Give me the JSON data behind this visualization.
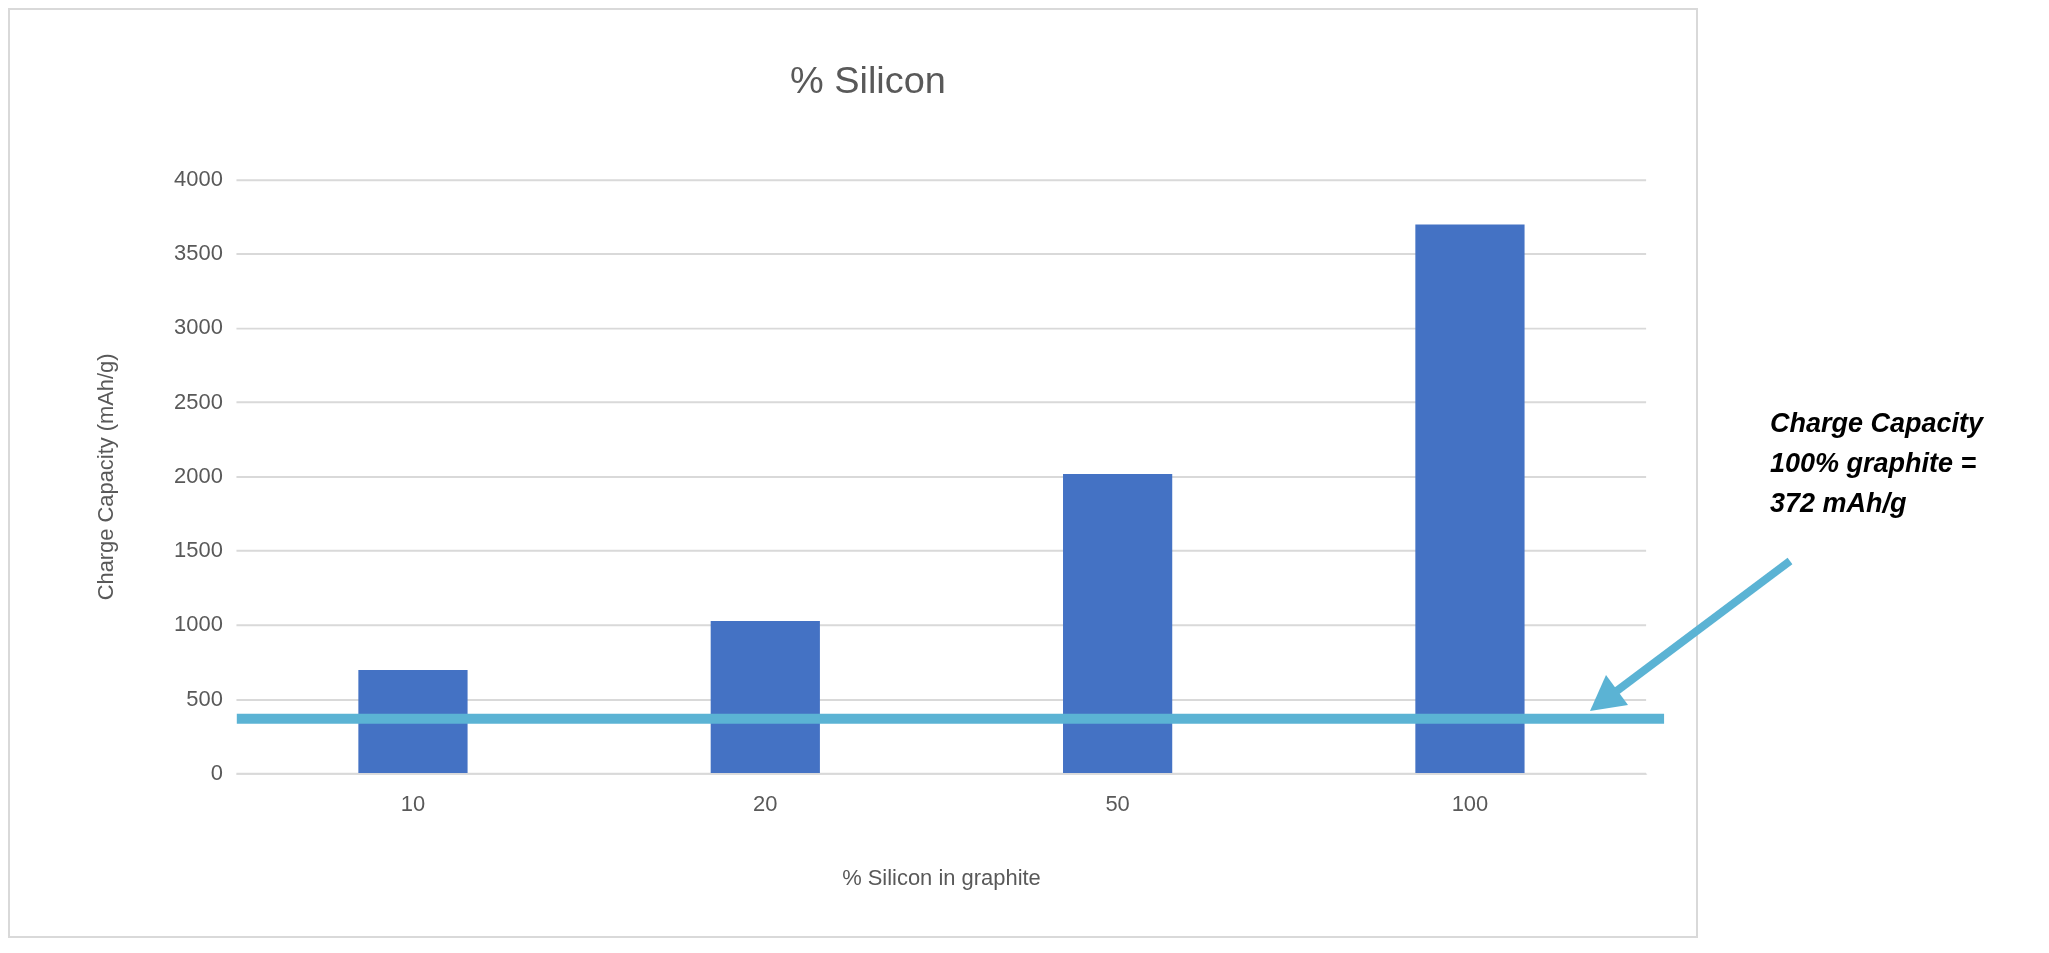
{
  "chart_data": {
    "type": "bar",
    "title": "% Silicon",
    "xlabel": "% Silicon in graphite",
    "ylabel": "Charge Capacity (mAh/g)",
    "categories": [
      "10",
      "20",
      "50",
      "100"
    ],
    "values": [
      700,
      1030,
      2020,
      3700
    ],
    "color": "#4472c4",
    "ylim": [
      0,
      4000
    ],
    "yticks": [
      0,
      500,
      1000,
      1500,
      2000,
      2500,
      3000,
      3500,
      4000
    ],
    "grid": "y",
    "legend": false,
    "ref_lines": [
      {
        "axis": "y",
        "value": 372,
        "color": "#5bb3d4"
      }
    ],
    "annotations": [
      "Charge Capacity 100% graphite = 372 mAh/g"
    ]
  }
}
